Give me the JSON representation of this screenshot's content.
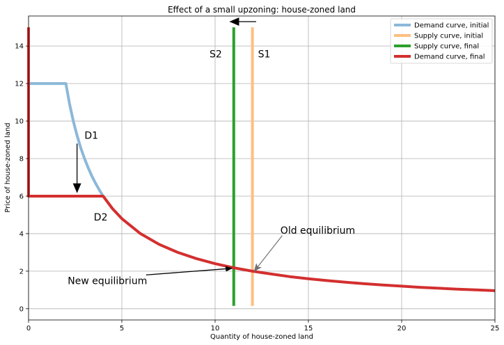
{
  "chart_data": {
    "type": "line",
    "title": "Effect of a small upzoning: house-zoned land",
    "xlabel": "Quantity of house-zoned land",
    "ylabel": "Price of house-zoned land",
    "xlim": [
      0,
      25
    ],
    "ylim": [
      -0.6,
      15.6
    ],
    "xticks": [
      0,
      5,
      10,
      15,
      20,
      25
    ],
    "xtick_labels": [
      "0",
      "5",
      "10",
      "15",
      "20",
      "25"
    ],
    "yticks": [
      0,
      2,
      4,
      6,
      8,
      10,
      12,
      14
    ],
    "ytick_labels": [
      "0",
      "2",
      "4",
      "6",
      "8",
      "10",
      "12",
      "14"
    ],
    "grid": true,
    "legend_position": "top-right",
    "series": [
      {
        "name": "Demand curve, initial",
        "color": "#8cb8d9",
        "x": [
          0,
          2,
          2.2,
          2.4,
          2.6,
          2.8,
          3.0,
          3.2,
          3.4,
          3.6,
          3.8,
          4.0
        ],
        "y": [
          12,
          12,
          10.9,
          10.0,
          9.23,
          8.57,
          8.0,
          7.5,
          7.06,
          6.67,
          6.32,
          6.0
        ]
      },
      {
        "name": "Supply curve, initial",
        "color": "#fdbf80",
        "x": [
          12,
          12
        ],
        "y": [
          0.15,
          15
        ]
      },
      {
        "name": "Supply curve, final",
        "color": "#2ca02c",
        "x": [
          11,
          11
        ],
        "y": [
          0.15,
          15
        ]
      },
      {
        "name": "Demand curve, final",
        "color": "#d32f2f",
        "x": [
          0,
          0,
          2,
          4,
          4.5,
          5,
          6,
          7,
          8,
          9,
          10,
          11,
          12,
          13,
          14,
          15,
          16,
          17,
          18,
          19,
          20,
          21,
          22,
          23,
          24,
          25
        ],
        "y": [
          15,
          6,
          6,
          6,
          5.33,
          4.8,
          4.0,
          3.43,
          3.0,
          2.67,
          2.4,
          2.18,
          2.0,
          1.85,
          1.71,
          1.6,
          1.5,
          1.41,
          1.33,
          1.26,
          1.2,
          1.14,
          1.09,
          1.04,
          1.0,
          0.96
        ]
      }
    ],
    "annotations": [
      {
        "text": "S2",
        "x": 9.7,
        "y": 13.4
      },
      {
        "text": "S1",
        "x": 12.3,
        "y": 13.4
      },
      {
        "text": "D1",
        "x": 3.0,
        "y": 9.05
      },
      {
        "text": "D2",
        "x": 3.5,
        "y": 4.7
      },
      {
        "text": "Old equilibrium",
        "x": 13.5,
        "y": 4.0
      },
      {
        "text": "New equilibrium",
        "x": 2.1,
        "y": 1.3
      }
    ],
    "arrows": [
      {
        "name": "supply-shift-arrow",
        "from": [
          12.2,
          15.3
        ],
        "to": [
          10.8,
          15.3
        ]
      },
      {
        "name": "demand-shift-arrow",
        "from": [
          2.6,
          8.8
        ],
        "to": [
          2.6,
          6.2
        ]
      },
      {
        "name": "old-equilibrium-arrow",
        "from": [
          13.6,
          3.9
        ],
        "to": [
          12.1,
          2.0
        ]
      },
      {
        "name": "new-equilibrium-arrow",
        "from": [
          6.3,
          1.8
        ],
        "to": [
          10.9,
          2.15
        ]
      }
    ]
  }
}
